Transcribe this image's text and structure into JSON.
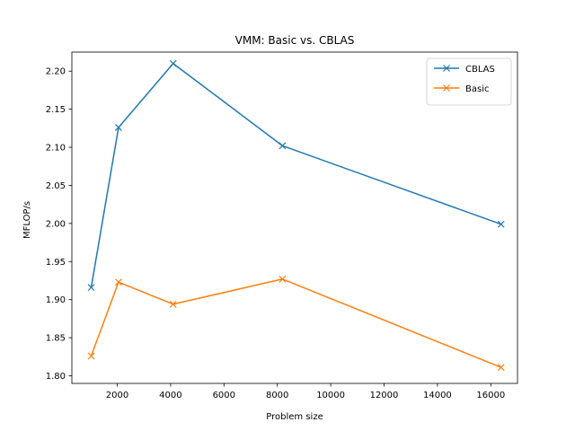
{
  "chart_data": {
    "type": "line",
    "title": "VMM: Basic vs. CBLAS",
    "xlabel": "Problem size",
    "ylabel": "MFLOP/s",
    "xlim": [
      300,
      17000
    ],
    "ylim": [
      1.79,
      2.225
    ],
    "x_ticks": [
      2000,
      4000,
      6000,
      8000,
      10000,
      12000,
      14000,
      16000
    ],
    "x_tick_labels": [
      "2000",
      "4000",
      "6000",
      "8000",
      "10000",
      "12000",
      "14000",
      "16000"
    ],
    "y_ticks": [
      1.8,
      1.85,
      1.9,
      1.95,
      2.0,
      2.05,
      2.1,
      2.15,
      2.2
    ],
    "y_tick_labels": [
      "1.80",
      "1.85",
      "1.90",
      "1.95",
      "2.00",
      "2.05",
      "2.10",
      "2.15",
      "2.20"
    ],
    "grid": false,
    "legend_position": "top-right",
    "x": [
      1024,
      2048,
      4096,
      8192,
      16384
    ],
    "series": [
      {
        "name": "CBLAS",
        "color": "#1f77b4",
        "marker": "x",
        "values": [
          1.916,
          2.126,
          2.21,
          2.102,
          1.999
        ]
      },
      {
        "name": "Basic",
        "color": "#ff7f0e",
        "marker": "x",
        "values": [
          1.826,
          1.923,
          1.894,
          1.927,
          1.811
        ]
      }
    ]
  }
}
